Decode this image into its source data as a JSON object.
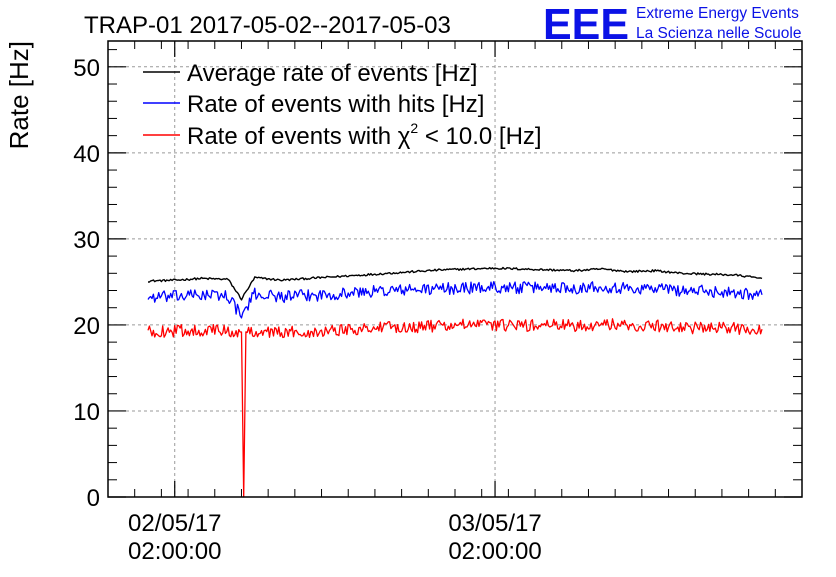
{
  "chart_data": {
    "type": "line",
    "title": "TRAP-01 2017-05-02--2017-05-03",
    "ylabel": "Rate [Hz]",
    "xlabel": "",
    "ylim": [
      0,
      53
    ],
    "yticks": [
      0,
      10,
      20,
      30,
      40,
      50
    ],
    "x_tick_labels": [
      {
        "x": "2017-05-02 02:00:00",
        "line1": "02/05/17",
        "line2": "02:00:00"
      },
      {
        "x": "2017-05-03 02:00:00",
        "line1": "03/05/17",
        "line2": "02:00:00"
      }
    ],
    "xlim": [
      "2017-05-01 21:00:00",
      "2017-05-04 01:00:00"
    ],
    "grid": true,
    "legend_position": "top-left",
    "logo": {
      "text": "EEE",
      "line1": "Extreme Energy Events",
      "line2": "La Scienza nelle Scuole",
      "color": "#0b12e6"
    },
    "colors": {
      "average": "#000000",
      "hits": "#0000ff",
      "chi2": "#ff0000"
    },
    "series": [
      {
        "key": "average",
        "name": "Average rate of events [Hz]",
        "color": "#000000",
        "x": [
          "2017-05-02 00:00",
          "2017-05-02 02:00",
          "2017-05-02 04:00",
          "2017-05-02 06:00",
          "2017-05-02 07:00",
          "2017-05-02 08:00",
          "2017-05-02 10:00",
          "2017-05-02 12:00",
          "2017-05-02 14:00",
          "2017-05-02 16:00",
          "2017-05-02 18:00",
          "2017-05-02 20:00",
          "2017-05-02 22:00",
          "2017-05-03 00:00",
          "2017-05-03 02:00",
          "2017-05-03 04:00",
          "2017-05-03 06:00",
          "2017-05-03 08:00",
          "2017-05-03 10:00",
          "2017-05-03 12:00",
          "2017-05-03 14:00",
          "2017-05-03 16:00",
          "2017-05-03 18:00",
          "2017-05-03 20:00",
          "2017-05-03 22:00"
        ],
        "y": [
          25.1,
          25.2,
          25.4,
          25.3,
          23.0,
          25.5,
          25.2,
          25.4,
          25.6,
          25.8,
          26.0,
          26.2,
          26.4,
          26.5,
          26.6,
          26.5,
          26.4,
          26.3,
          26.5,
          26.2,
          26.3,
          26.0,
          25.9,
          25.8,
          25.4
        ]
      },
      {
        "key": "hits",
        "name": "Rate of events with hits [Hz]",
        "color": "#0000ff",
        "x": [
          "2017-05-02 00:00",
          "2017-05-02 02:00",
          "2017-05-02 04:00",
          "2017-05-02 06:00",
          "2017-05-02 07:00",
          "2017-05-02 08:00",
          "2017-05-02 10:00",
          "2017-05-02 12:00",
          "2017-05-02 14:00",
          "2017-05-02 16:00",
          "2017-05-02 18:00",
          "2017-05-02 20:00",
          "2017-05-02 22:00",
          "2017-05-03 00:00",
          "2017-05-03 02:00",
          "2017-05-03 04:00",
          "2017-05-03 06:00",
          "2017-05-03 08:00",
          "2017-05-03 10:00",
          "2017-05-03 12:00",
          "2017-05-03 14:00",
          "2017-05-03 16:00",
          "2017-05-03 18:00",
          "2017-05-03 20:00",
          "2017-05-03 22:00"
        ],
        "y": [
          23.2,
          23.3,
          23.5,
          23.4,
          21.0,
          23.6,
          23.3,
          23.4,
          23.6,
          23.8,
          24.0,
          24.1,
          24.2,
          24.3,
          24.4,
          24.3,
          24.4,
          24.3,
          24.5,
          24.2,
          24.3,
          24.0,
          23.9,
          23.8,
          23.5
        ]
      },
      {
        "key": "chi2",
        "name": "Rate of events with χ² < 10.0 [Hz]",
        "color": "#ff0000",
        "x": [
          "2017-05-02 00:00",
          "2017-05-02 02:00",
          "2017-05-02 04:00",
          "2017-05-02 06:00",
          "2017-05-02 07:00",
          "2017-05-02 07:10",
          "2017-05-02 07:20",
          "2017-05-02 08:00",
          "2017-05-02 10:00",
          "2017-05-02 12:00",
          "2017-05-02 14:00",
          "2017-05-02 16:00",
          "2017-05-02 18:00",
          "2017-05-02 20:00",
          "2017-05-02 22:00",
          "2017-05-03 00:00",
          "2017-05-03 02:00",
          "2017-05-03 04:00",
          "2017-05-03 06:00",
          "2017-05-03 08:00",
          "2017-05-03 10:00",
          "2017-05-03 12:00",
          "2017-05-03 14:00",
          "2017-05-03 16:00",
          "2017-05-03 18:00",
          "2017-05-03 20:00",
          "2017-05-03 22:00"
        ],
        "y": [
          19.2,
          19.3,
          19.4,
          19.3,
          19.0,
          0,
          19.0,
          19.3,
          19.1,
          19.2,
          19.4,
          19.6,
          19.7,
          19.8,
          19.9,
          20.0,
          20.0,
          19.9,
          20.0,
          19.9,
          20.1,
          19.9,
          19.9,
          19.7,
          19.6,
          19.6,
          19.5
        ]
      }
    ]
  }
}
